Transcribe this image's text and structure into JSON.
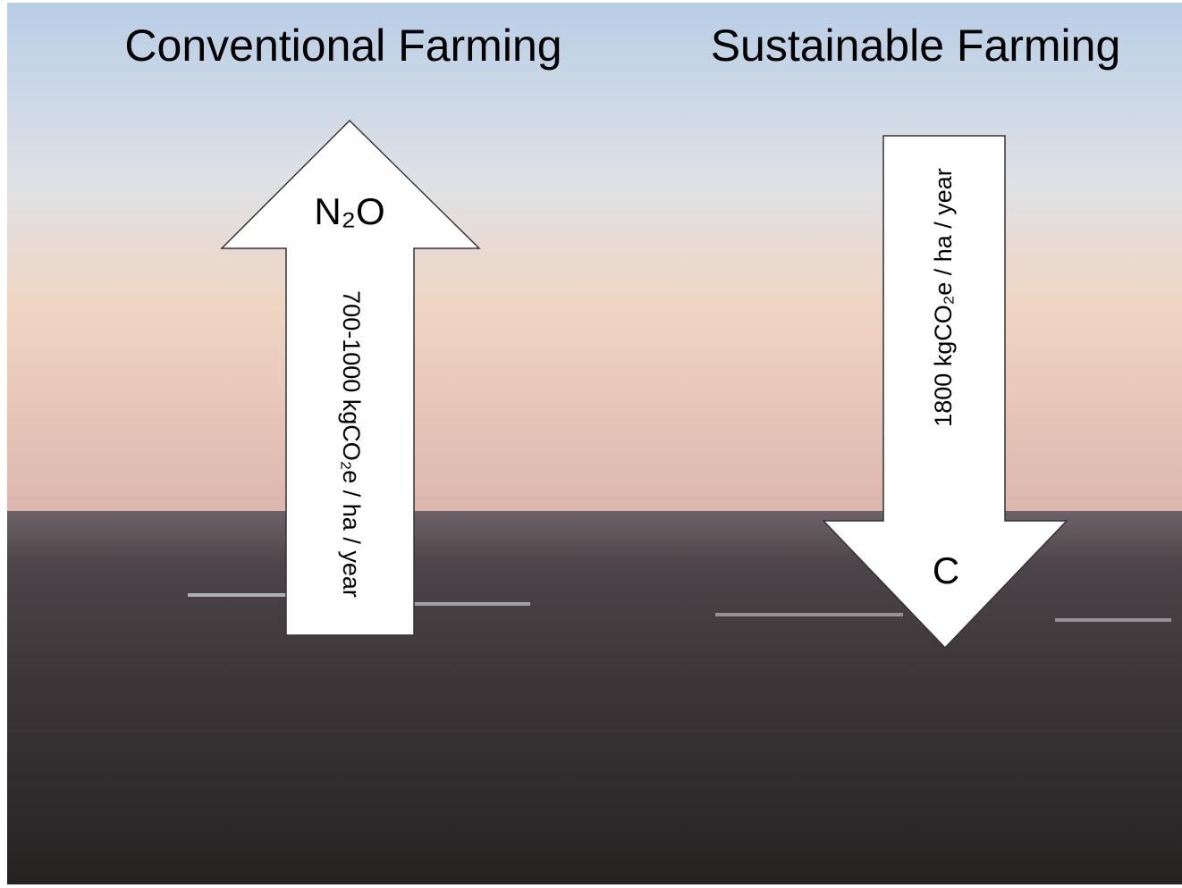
{
  "header": {
    "left_title": "Conventional Farming",
    "right_title": "Sustainable Farming"
  },
  "arrows": [
    {
      "direction": "up",
      "gas": "N₂O",
      "amount": "700-1000 kgCO₂e / ha / year"
    },
    {
      "direction": "down",
      "gas": "C",
      "amount": "1800 kgCO₂e / ha / year"
    }
  ]
}
